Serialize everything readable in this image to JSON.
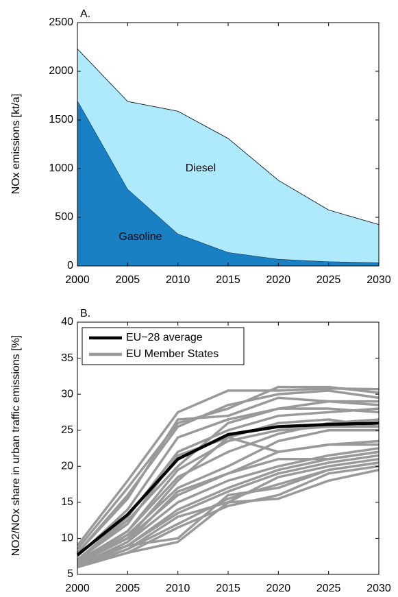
{
  "chart_data": [
    {
      "type": "area",
      "title": "A.",
      "y_label": "NOx emissions [kt/a]",
      "stacked": true,
      "x": [
        2000,
        2005,
        2010,
        2015,
        2020,
        2025,
        2030
      ],
      "xlim": [
        2000,
        2030
      ],
      "xticks": [
        2000,
        2005,
        2010,
        2015,
        2020,
        2025,
        2030
      ],
      "ylim": [
        0,
        2500
      ],
      "yticks": [
        0,
        500,
        1000,
        1500,
        2000,
        2500
      ],
      "series": [
        {
          "name": "Gasoline",
          "color": "#1a80c4",
          "values": [
            1700,
            790,
            330,
            140,
            70,
            45,
            35
          ]
        },
        {
          "name": "Diesel",
          "color": "#aeeafc",
          "values": [
            530,
            900,
            1260,
            1170,
            810,
            530,
            390
          ]
        }
      ]
    },
    {
      "type": "line",
      "title": "B.",
      "y_label": "NO2/NOx share in urban traffic emissions [%]",
      "x": [
        2000,
        2005,
        2010,
        2015,
        2020,
        2025,
        2030
      ],
      "xlim": [
        2000,
        2030
      ],
      "xticks": [
        2000,
        2005,
        2010,
        2015,
        2020,
        2025,
        2030
      ],
      "ylim": [
        5,
        40
      ],
      "yticks": [
        5,
        10,
        15,
        20,
        25,
        30,
        35,
        40
      ],
      "legend": "upper left",
      "series": [
        {
          "name": "EU−28 average",
          "color": "#000000",
          "values": [
            7.7,
            13.3,
            21,
            24.4,
            25.5,
            25.8,
            26
          ]
        },
        {
          "name": "EU Member States",
          "color": "#999999",
          "lines": [
            [
              9,
              18,
              27.5,
              30.5,
              30.5,
              30.8,
              30.7
            ],
            [
              8.5,
              17,
              26,
              28,
              31,
              31,
              30.2
            ],
            [
              8,
              16,
              25.5,
              28.5,
              30,
              30.5,
              29.5
            ],
            [
              8,
              15.5,
              26.5,
              27,
              29.5,
              29,
              28.5
            ],
            [
              7.5,
              14,
              24,
              26.5,
              28,
              29,
              29
            ],
            [
              7,
              13,
              22,
              25,
              27,
              27.5,
              28
            ],
            [
              7,
              12.5,
              20,
              26,
              28,
              28,
              27.5
            ],
            [
              7,
              12,
              21.5,
              24,
              26,
              26.5,
              25.5
            ],
            [
              6.8,
              11,
              19.5,
              23.5,
              25,
              25.5,
              25.5
            ],
            [
              6.5,
              11,
              18.5,
              22,
              24.5,
              26,
              26.5
            ],
            [
              6.5,
              10.5,
              17,
              20,
              23.5,
              25,
              25
            ],
            [
              6.5,
              10,
              16,
              19,
              22,
              23,
              23
            ],
            [
              6.2,
              9.5,
              15,
              18,
              20,
              21.5,
              22.5
            ],
            [
              6.2,
              9,
              14,
              17,
              19.5,
              21,
              22
            ],
            [
              6,
              9,
              13.5,
              16.5,
              19,
              20.5,
              21.5
            ],
            [
              6,
              8.5,
              13,
              15,
              18.5,
              20,
              21
            ],
            [
              6,
              8.5,
              12,
              15.5,
              17.5,
              19.5,
              20.5
            ],
            [
              6,
              8,
              11.5,
              14.5,
              16,
              19,
              20
            ],
            [
              6,
              8,
              9.5,
              15,
              15.5,
              18,
              19.5
            ],
            [
              6.5,
              9,
              10,
              16,
              17,
              19.5,
              20.5
            ],
            [
              7,
              10,
              18,
              24,
              22,
              23,
              23.5
            ],
            [
              6.2,
              9.5,
              16.5,
              19,
              21,
              21,
              22
            ]
          ]
        }
      ]
    }
  ]
}
